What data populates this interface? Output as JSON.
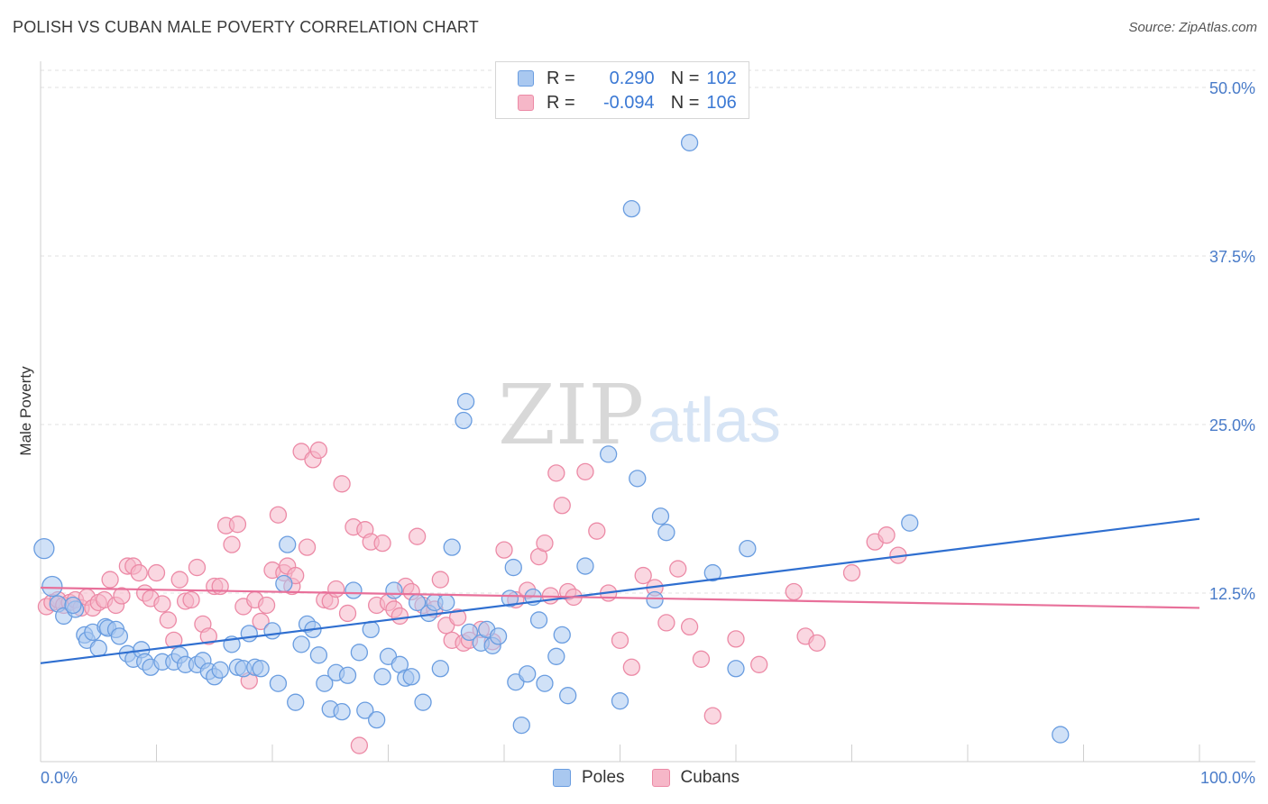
{
  "title": "POLISH VS CUBAN MALE POVERTY CORRELATION CHART",
  "source": "Source: ZipAtlas.com",
  "watermark": {
    "zip": "ZIP",
    "atlas": "atlas"
  },
  "legend": {
    "rows": [
      {
        "r_label": "R =",
        "r_value": "0.290",
        "n_label": "N =",
        "n_value": "102"
      },
      {
        "r_label": "R =",
        "r_value": "-0.094",
        "n_label": "N =",
        "n_value": "106"
      }
    ]
  },
  "bottom_legend": {
    "poles": "Poles",
    "cubans": "Cubans"
  },
  "colors": {
    "poles_fill": "#a9c8f0",
    "poles_stroke": "#6a9de0",
    "poles_line": "#2f6fd0",
    "cubans_fill": "#f6b7c8",
    "cubans_stroke": "#ec8aa6",
    "cubans_line": "#e8709a",
    "axis_label": "#4a7cc9"
  },
  "chart_data": {
    "type": "scatter",
    "title": "POLISH VS CUBAN MALE POVERTY CORRELATION CHART",
    "xlabel": "",
    "ylabel": "Male Poverty",
    "xlim": [
      0,
      100
    ],
    "ylim": [
      0,
      50
    ],
    "x_tick_labels": [
      "0.0%",
      "100.0%"
    ],
    "y_ticks": [
      12.5,
      25.0,
      37.5,
      50.0
    ],
    "y_tick_labels": [
      "12.5%",
      "25.0%",
      "37.5%",
      "50.0%"
    ],
    "grid": true,
    "legend_position": "top-center",
    "series": [
      {
        "name": "Poles",
        "r": 0.29,
        "n": 102,
        "trend": {
          "x": [
            0,
            100
          ],
          "y": [
            7.3,
            18.0
          ]
        },
        "points": [
          [
            0.3,
            15.8
          ],
          [
            1,
            13
          ],
          [
            1.5,
            11.7
          ],
          [
            2,
            10.8
          ],
          [
            3,
            11.3
          ],
          [
            2.8,
            11.6
          ],
          [
            3.8,
            9.4
          ],
          [
            4,
            9
          ],
          [
            4.5,
            9.6
          ],
          [
            5,
            8.4
          ],
          [
            5.6,
            10
          ],
          [
            5.8,
            9.9
          ],
          [
            6.5,
            9.8
          ],
          [
            6.8,
            9.3
          ],
          [
            7.5,
            8
          ],
          [
            8,
            7.6
          ],
          [
            8.7,
            8.3
          ],
          [
            9,
            7.4
          ],
          [
            9.5,
            7
          ],
          [
            10.5,
            7.4
          ],
          [
            11.5,
            7.4
          ],
          [
            12,
            7.9
          ],
          [
            12.5,
            7.2
          ],
          [
            13.5,
            7.2
          ],
          [
            14,
            7.5
          ],
          [
            14.5,
            6.7
          ],
          [
            15,
            6.3
          ],
          [
            15.5,
            6.8
          ],
          [
            16.5,
            8.7
          ],
          [
            17,
            7
          ],
          [
            17.5,
            6.9
          ],
          [
            18,
            9.5
          ],
          [
            18.5,
            7
          ],
          [
            19,
            6.9
          ],
          [
            20,
            9.7
          ],
          [
            20.5,
            5.8
          ],
          [
            21,
            13.2
          ],
          [
            21.3,
            16.1
          ],
          [
            22,
            4.4
          ],
          [
            22.5,
            8.7
          ],
          [
            23,
            10.2
          ],
          [
            23.5,
            9.8
          ],
          [
            24,
            7.9
          ],
          [
            24.5,
            5.8
          ],
          [
            25,
            3.9
          ],
          [
            25.5,
            6.6
          ],
          [
            26,
            3.7
          ],
          [
            26.5,
            6.4
          ],
          [
            27,
            12.7
          ],
          [
            27.5,
            8.1
          ],
          [
            28,
            3.8
          ],
          [
            28.5,
            9.8
          ],
          [
            29,
            3.1
          ],
          [
            29.5,
            6.3
          ],
          [
            30,
            7.8
          ],
          [
            30.5,
            12.7
          ],
          [
            31,
            7.2
          ],
          [
            31.5,
            6.2
          ],
          [
            32,
            6.3
          ],
          [
            32.5,
            11.8
          ],
          [
            33,
            4.4
          ],
          [
            33.5,
            11
          ],
          [
            34,
            11.8
          ],
          [
            34.5,
            6.9
          ],
          [
            35,
            11.8
          ],
          [
            35.5,
            15.9
          ],
          [
            36.5,
            25.3
          ],
          [
            36.7,
            26.7
          ],
          [
            37,
            9.6
          ],
          [
            38,
            8.8
          ],
          [
            38.5,
            9.8
          ],
          [
            39,
            8.6
          ],
          [
            39.5,
            9.3
          ],
          [
            40.5,
            12.1
          ],
          [
            40.8,
            14.4
          ],
          [
            41,
            5.9
          ],
          [
            41.5,
            2.7
          ],
          [
            42,
            6.5
          ],
          [
            42.5,
            12.2
          ],
          [
            43,
            10.5
          ],
          [
            43.5,
            5.8
          ],
          [
            44.5,
            7.8
          ],
          [
            45,
            9.4
          ],
          [
            45.5,
            4.9
          ],
          [
            47,
            14.5
          ],
          [
            49,
            22.8
          ],
          [
            50,
            4.5
          ],
          [
            51,
            41
          ],
          [
            51.5,
            21
          ],
          [
            53,
            12
          ],
          [
            53.5,
            18.2
          ],
          [
            54,
            17
          ],
          [
            56,
            45.9
          ],
          [
            58,
            14
          ],
          [
            60,
            6.9
          ],
          [
            61,
            15.8
          ],
          [
            75,
            17.7
          ],
          [
            88,
            2
          ]
        ]
      },
      {
        "name": "Cubans",
        "r": -0.094,
        "n": 106,
        "trend": {
          "x": [
            0,
            100
          ],
          "y": [
            12.9,
            11.4
          ]
        },
        "points": [
          [
            0.5,
            11.5
          ],
          [
            1,
            11.8
          ],
          [
            1.5,
            12
          ],
          [
            2,
            11.6
          ],
          [
            2.5,
            11.8
          ],
          [
            3,
            12
          ],
          [
            3.5,
            11.4
          ],
          [
            4,
            12.2
          ],
          [
            4.5,
            11.4
          ],
          [
            5,
            11.8
          ],
          [
            5.5,
            12
          ],
          [
            6,
            13.5
          ],
          [
            6.5,
            11.6
          ],
          [
            7,
            12.3
          ],
          [
            7.5,
            14.5
          ],
          [
            8,
            14.5
          ],
          [
            8.5,
            14
          ],
          [
            9,
            12.5
          ],
          [
            9.5,
            12.1
          ],
          [
            10,
            14
          ],
          [
            10.5,
            11.7
          ],
          [
            11,
            10.5
          ],
          [
            11.5,
            9
          ],
          [
            12,
            13.5
          ],
          [
            12.5,
            11.9
          ],
          [
            13,
            12
          ],
          [
            13.5,
            14.4
          ],
          [
            14,
            10.2
          ],
          [
            14.5,
            9.3
          ],
          [
            15,
            13
          ],
          [
            15.5,
            13
          ],
          [
            16,
            17.5
          ],
          [
            16.5,
            16.1
          ],
          [
            17,
            17.6
          ],
          [
            17.5,
            11.5
          ],
          [
            18,
            6
          ],
          [
            18.5,
            12
          ],
          [
            19,
            10.4
          ],
          [
            19.5,
            11.6
          ],
          [
            20,
            14.2
          ],
          [
            20.5,
            18.3
          ],
          [
            21,
            14
          ],
          [
            21.3,
            14.5
          ],
          [
            21.7,
            13
          ],
          [
            22,
            13.8
          ],
          [
            22.5,
            23
          ],
          [
            23,
            15.9
          ],
          [
            23.5,
            22.4
          ],
          [
            24,
            23.1
          ],
          [
            24.5,
            12
          ],
          [
            25,
            11.9
          ],
          [
            25.5,
            12.8
          ],
          [
            26,
            20.6
          ],
          [
            26.5,
            11
          ],
          [
            27,
            17.4
          ],
          [
            27.5,
            1.2
          ],
          [
            28,
            17.2
          ],
          [
            28.5,
            16.3
          ],
          [
            29,
            11.6
          ],
          [
            29.5,
            16.2
          ],
          [
            30,
            11.8
          ],
          [
            30.5,
            11.3
          ],
          [
            31,
            10.8
          ],
          [
            31.5,
            13
          ],
          [
            32,
            12.6
          ],
          [
            32.5,
            16.7
          ],
          [
            33,
            11.6
          ],
          [
            34,
            11.3
          ],
          [
            34.5,
            13.5
          ],
          [
            35,
            10.1
          ],
          [
            35.5,
            9
          ],
          [
            36,
            10.7
          ],
          [
            36.5,
            8.8
          ],
          [
            37,
            9
          ],
          [
            38,
            9.8
          ],
          [
            39,
            8.9
          ],
          [
            40,
            15.7
          ],
          [
            41,
            12
          ],
          [
            42,
            12.7
          ],
          [
            43,
            15.2
          ],
          [
            43.5,
            16.2
          ],
          [
            44,
            12.3
          ],
          [
            44.5,
            21.4
          ],
          [
            45,
            19
          ],
          [
            45.5,
            12.6
          ],
          [
            46,
            12.2
          ],
          [
            47,
            21.5
          ],
          [
            48,
            17.1
          ],
          [
            49,
            12.5
          ],
          [
            50,
            9
          ],
          [
            51,
            7
          ],
          [
            52,
            13.8
          ],
          [
            53,
            12.9
          ],
          [
            54,
            10.3
          ],
          [
            55,
            14.3
          ],
          [
            56,
            10
          ],
          [
            57,
            7.6
          ],
          [
            58,
            3.4
          ],
          [
            60,
            9.1
          ],
          [
            62,
            7.2
          ],
          [
            65,
            12.6
          ],
          [
            66,
            9.3
          ],
          [
            67,
            8.8
          ],
          [
            70,
            14
          ],
          [
            72,
            16.3
          ],
          [
            73,
            16.8
          ],
          [
            74,
            15.3
          ]
        ]
      }
    ]
  }
}
